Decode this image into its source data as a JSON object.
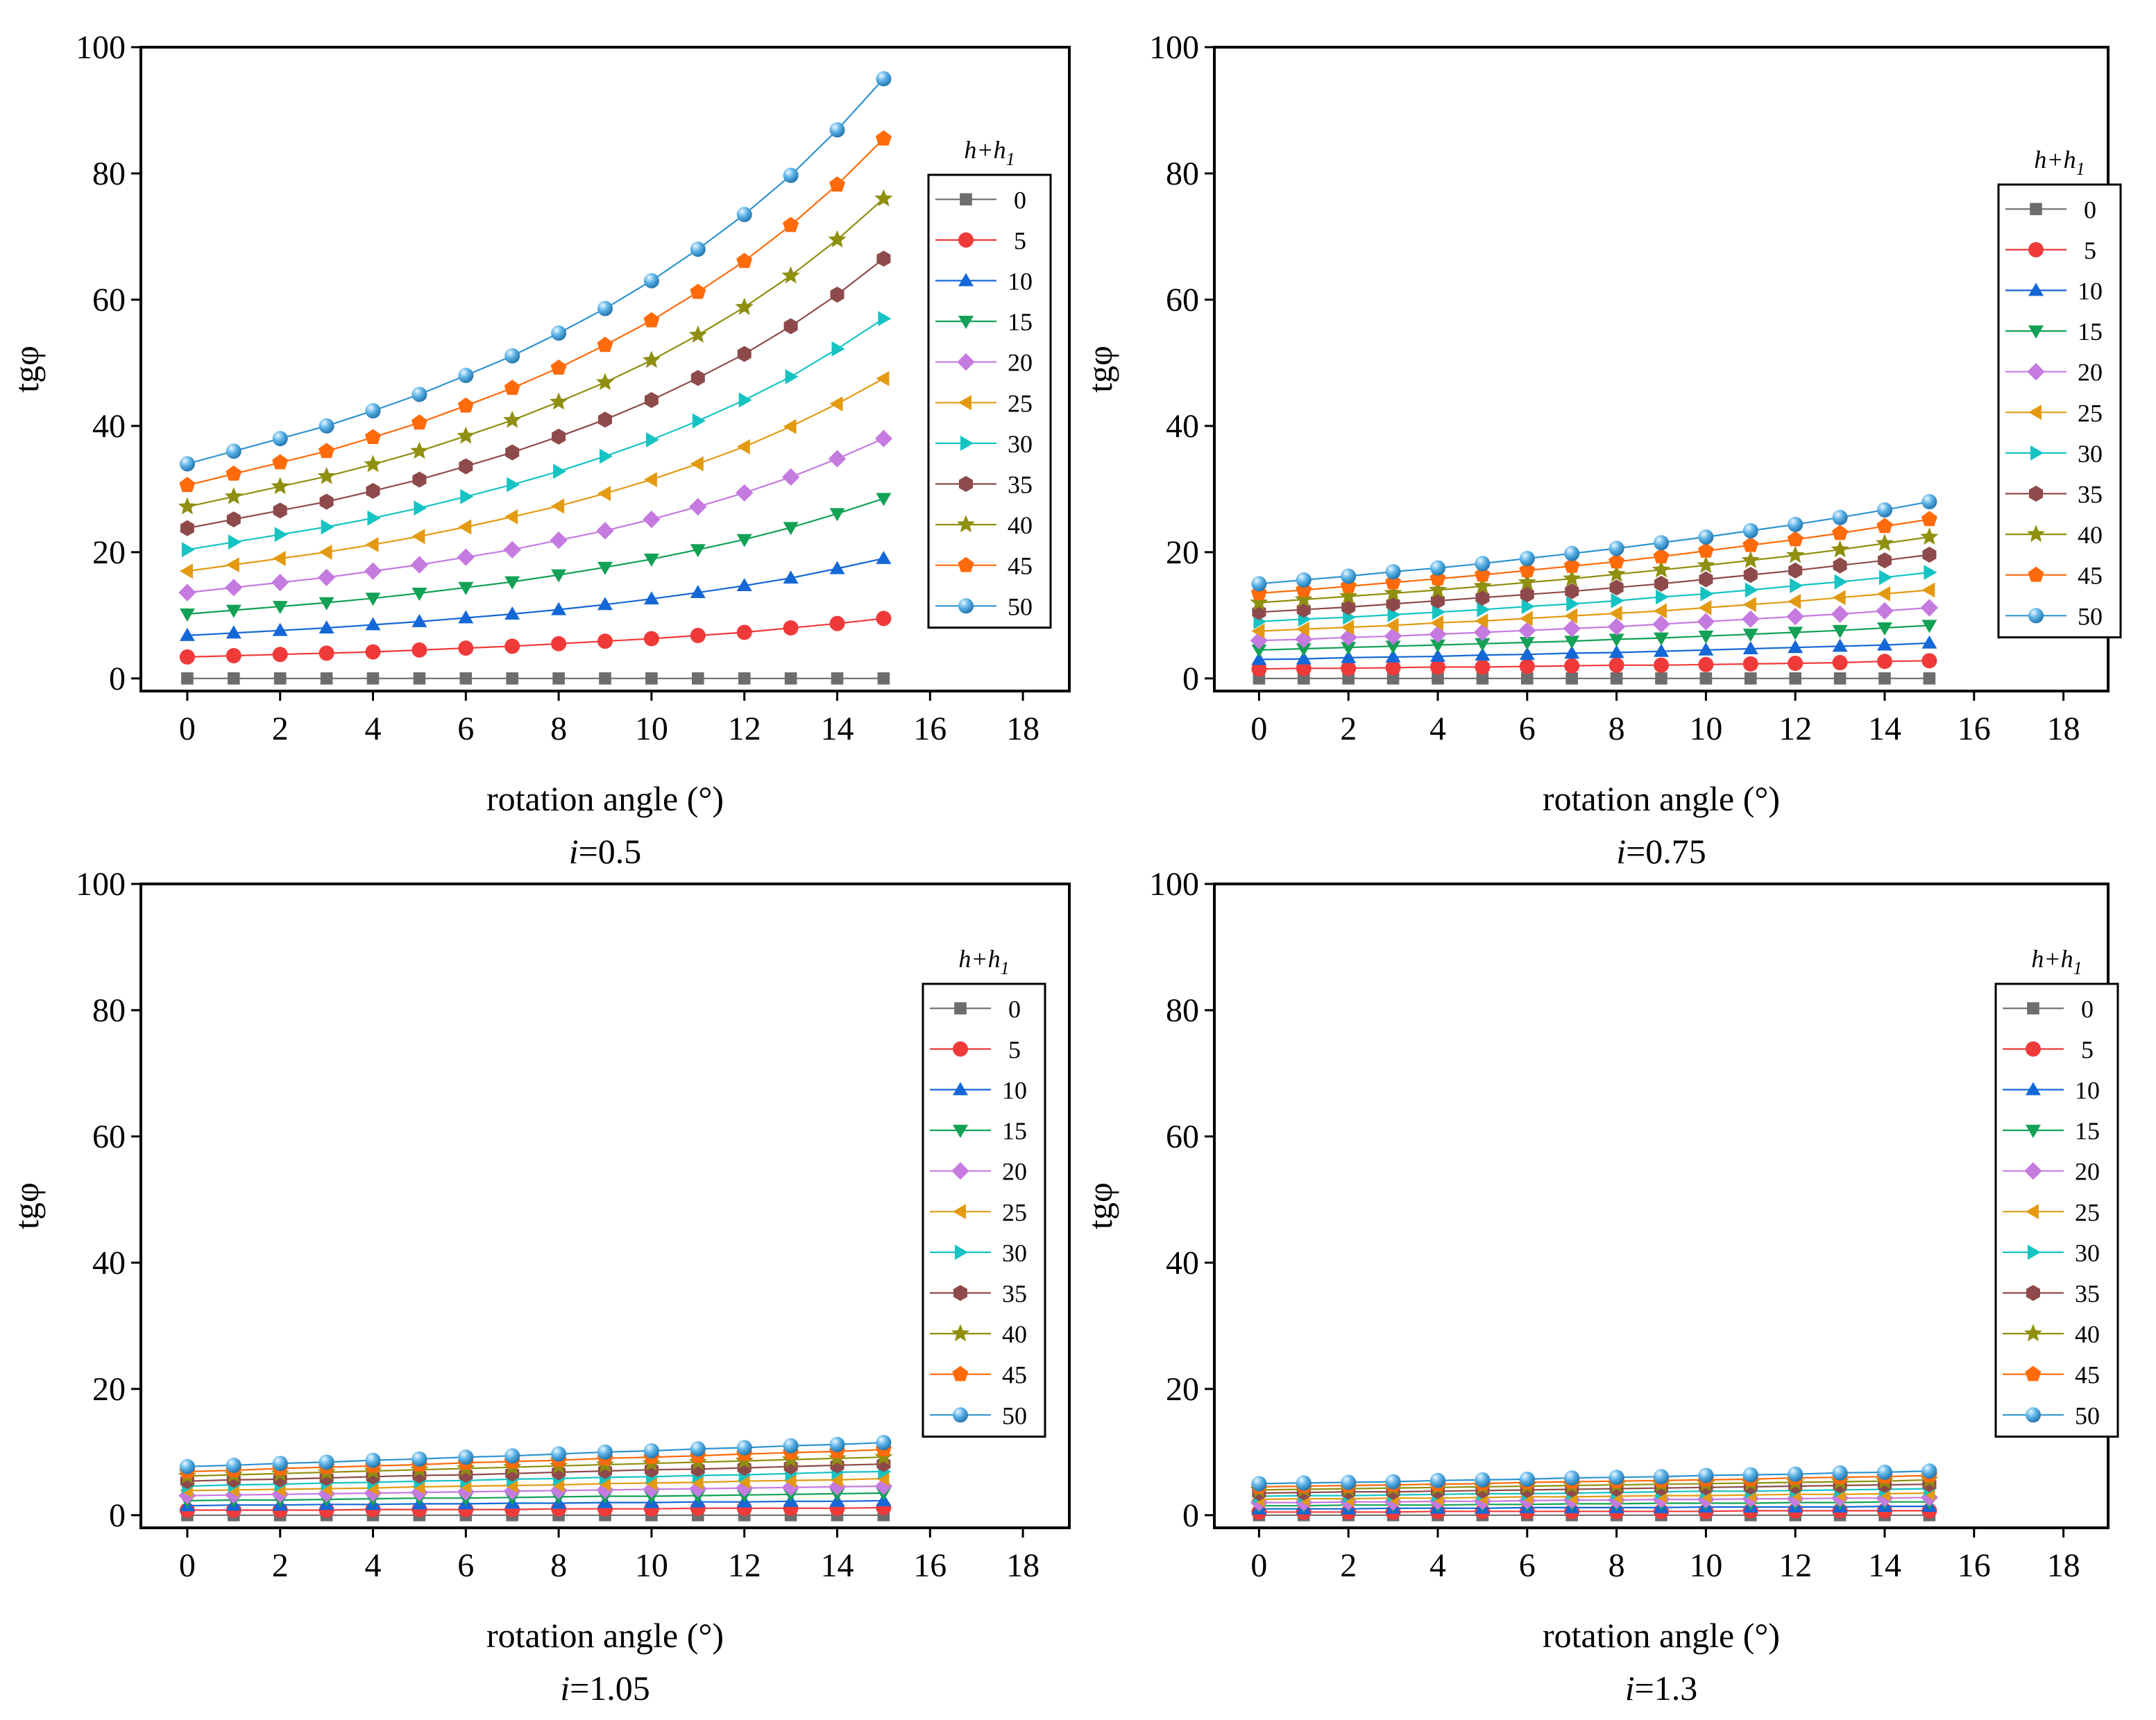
{
  "chart_data": [
    {
      "type": "line",
      "caption_var": "i",
      "caption_value": "=0.5",
      "xlabel": "rotation angle (°)",
      "ylabel": "tgφ",
      "xlim": [
        -1,
        19
      ],
      "ylim": [
        -2,
        100
      ],
      "xticks": [
        0,
        2,
        4,
        6,
        8,
        10,
        12,
        14,
        16,
        18
      ],
      "yticks": [
        0,
        20,
        40,
        60,
        80,
        100
      ],
      "legend_title": {
        "base": "h+h",
        "sub": "1"
      },
      "legend_position": "right",
      "x": [
        0,
        1,
        2,
        3,
        4,
        5,
        6,
        7,
        8,
        9,
        10,
        11,
        12,
        13,
        14,
        15
      ],
      "series": [
        {
          "name": "0",
          "values": [
            0,
            0,
            0,
            0,
            0,
            0,
            0,
            0,
            0,
            0,
            0,
            0,
            0,
            0,
            0,
            0
          ]
        },
        {
          "name": "5",
          "values": [
            3.4,
            3.6,
            3.8,
            4.0,
            4.2,
            4.5,
            4.8,
            5.1,
            5.5,
            5.9,
            6.3,
            6.8,
            7.3,
            8.0,
            8.7,
            9.5
          ]
        },
        {
          "name": "10",
          "values": [
            6.8,
            7.2,
            7.6,
            8.0,
            8.5,
            9.0,
            9.6,
            10.2,
            10.9,
            11.7,
            12.6,
            13.6,
            14.7,
            15.9,
            17.4,
            19.0
          ]
        },
        {
          "name": "15",
          "values": [
            10.2,
            10.8,
            11.4,
            12.0,
            12.7,
            13.5,
            14.4,
            15.3,
            16.4,
            17.6,
            18.9,
            20.4,
            22.0,
            23.9,
            26.1,
            28.5
          ]
        },
        {
          "name": "20",
          "values": [
            13.6,
            14.4,
            15.2,
            16.0,
            17.0,
            18.0,
            19.2,
            20.4,
            21.9,
            23.4,
            25.2,
            27.2,
            29.4,
            31.9,
            34.8,
            38.0
          ]
        },
        {
          "name": "25",
          "values": [
            17.0,
            18.0,
            19.0,
            20.0,
            21.2,
            22.5,
            24.0,
            25.6,
            27.3,
            29.3,
            31.5,
            34.0,
            36.7,
            39.9,
            43.5,
            47.5
          ]
        },
        {
          "name": "30",
          "values": [
            20.4,
            21.6,
            22.8,
            24.0,
            25.4,
            27.0,
            28.8,
            30.7,
            32.8,
            35.2,
            37.8,
            40.8,
            44.1,
            47.8,
            52.2,
            57.0
          ]
        },
        {
          "name": "35",
          "values": [
            23.8,
            25.2,
            26.6,
            28.0,
            29.7,
            31.5,
            33.6,
            35.8,
            38.3,
            41.0,
            44.1,
            47.6,
            51.4,
            55.8,
            60.8,
            66.5
          ]
        },
        {
          "name": "40",
          "values": [
            27.2,
            28.8,
            30.4,
            32.0,
            33.9,
            36.0,
            38.4,
            40.9,
            43.8,
            46.9,
            50.4,
            54.4,
            58.8,
            63.8,
            69.5,
            76.0
          ]
        },
        {
          "name": "45",
          "values": [
            30.6,
            32.4,
            34.2,
            36.0,
            38.2,
            40.5,
            43.2,
            46.0,
            49.2,
            52.8,
            56.7,
            61.2,
            66.1,
            71.8,
            78.2,
            85.5
          ]
        },
        {
          "name": "50",
          "values": [
            34.0,
            36.0,
            38.0,
            40.0,
            42.4,
            45.0,
            48.0,
            51.1,
            54.7,
            58.6,
            63.0,
            68.0,
            73.5,
            79.7,
            86.9,
            95.0
          ]
        }
      ]
    },
    {
      "type": "line",
      "caption_var": "i",
      "caption_value": "=0.75",
      "xlabel": "rotation angle (°)",
      "ylabel": "tgφ",
      "xlim": [
        -1,
        19
      ],
      "ylim": [
        -2,
        100
      ],
      "xticks": [
        0,
        2,
        4,
        6,
        8,
        10,
        12,
        14,
        16,
        18
      ],
      "yticks": [
        0,
        20,
        40,
        60,
        80,
        100
      ],
      "legend_title": {
        "base": "h+h",
        "sub": "1"
      },
      "legend_position": "right",
      "x": [
        0,
        1,
        2,
        3,
        4,
        5,
        6,
        7,
        8,
        9,
        10,
        11,
        12,
        13,
        14,
        15
      ],
      "series": [
        {
          "name": "0",
          "values": [
            0,
            0,
            0,
            0,
            0,
            0,
            0,
            0,
            0,
            0,
            0,
            0,
            0,
            0,
            0,
            0
          ]
        },
        {
          "name": "5",
          "values": [
            1.5,
            1.6,
            1.6,
            1.7,
            1.8,
            1.8,
            1.9,
            2.0,
            2.1,
            2.1,
            2.2,
            2.3,
            2.4,
            2.5,
            2.7,
            2.8
          ]
        },
        {
          "name": "10",
          "values": [
            3.0,
            3.1,
            3.3,
            3.4,
            3.5,
            3.7,
            3.8,
            4.0,
            4.1,
            4.3,
            4.5,
            4.7,
            4.9,
            5.1,
            5.3,
            5.6
          ]
        },
        {
          "name": "15",
          "values": [
            4.5,
            4.7,
            4.9,
            5.1,
            5.3,
            5.5,
            5.7,
            5.9,
            6.2,
            6.4,
            6.7,
            7.0,
            7.3,
            7.6,
            8.0,
            8.4
          ]
        },
        {
          "name": "20",
          "values": [
            6.0,
            6.2,
            6.5,
            6.7,
            7.0,
            7.3,
            7.6,
            7.9,
            8.2,
            8.6,
            9.0,
            9.4,
            9.8,
            10.2,
            10.7,
            11.2
          ]
        },
        {
          "name": "25",
          "values": [
            7.5,
            7.8,
            8.1,
            8.4,
            8.8,
            9.1,
            9.5,
            9.9,
            10.3,
            10.7,
            11.2,
            11.7,
            12.2,
            12.8,
            13.4,
            14.0
          ]
        },
        {
          "name": "30",
          "values": [
            9.0,
            9.4,
            9.7,
            10.1,
            10.5,
            10.9,
            11.4,
            11.8,
            12.3,
            12.9,
            13.4,
            14.0,
            14.7,
            15.3,
            16.0,
            16.8
          ]
        },
        {
          "name": "35",
          "values": [
            10.5,
            10.9,
            11.3,
            11.8,
            12.3,
            12.8,
            13.3,
            13.8,
            14.4,
            15.0,
            15.7,
            16.4,
            17.1,
            17.9,
            18.7,
            19.6
          ]
        },
        {
          "name": "40",
          "values": [
            12.0,
            12.5,
            13.0,
            13.5,
            14.0,
            14.6,
            15.2,
            15.8,
            16.5,
            17.2,
            17.9,
            18.7,
            19.5,
            20.4,
            21.4,
            22.4
          ]
        },
        {
          "name": "45",
          "values": [
            13.5,
            14.0,
            14.6,
            15.2,
            15.8,
            16.4,
            17.1,
            17.8,
            18.5,
            19.3,
            20.2,
            21.1,
            22.0,
            23.0,
            24.1,
            25.2
          ]
        },
        {
          "name": "50",
          "values": [
            15.0,
            15.6,
            16.2,
            16.9,
            17.5,
            18.2,
            19.0,
            19.8,
            20.6,
            21.5,
            22.4,
            23.4,
            24.4,
            25.5,
            26.7,
            28.0
          ]
        }
      ]
    },
    {
      "type": "line",
      "caption_var": "i",
      "caption_value": "=1.05",
      "xlabel": "rotation angle (°)",
      "ylabel": "tgφ",
      "xlim": [
        -1,
        19
      ],
      "ylim": [
        -2,
        100
      ],
      "xticks": [
        0,
        2,
        4,
        6,
        8,
        10,
        12,
        14,
        16,
        18
      ],
      "yticks": [
        0,
        20,
        40,
        60,
        80,
        100
      ],
      "legend_title": {
        "base": "h+h",
        "sub": "1"
      },
      "legend_position": "right",
      "x": [
        0,
        1,
        2,
        3,
        4,
        5,
        6,
        7,
        8,
        9,
        10,
        11,
        12,
        13,
        14,
        15
      ],
      "series": [
        {
          "name": "0",
          "values": [
            0,
            0,
            0,
            0,
            0,
            0,
            0,
            0,
            0,
            0,
            0,
            0,
            0,
            0,
            0,
            0
          ]
        },
        {
          "name": "5",
          "values": [
            0.8,
            0.8,
            0.8,
            0.8,
            0.9,
            0.9,
            0.9,
            0.9,
            1.0,
            1.0,
            1.0,
            1.1,
            1.1,
            1.1,
            1.1,
            1.2
          ]
        },
        {
          "name": "10",
          "values": [
            1.5,
            1.6,
            1.6,
            1.7,
            1.7,
            1.8,
            1.8,
            1.9,
            1.9,
            2.0,
            2.0,
            2.1,
            2.1,
            2.2,
            2.2,
            2.3
          ]
        },
        {
          "name": "15",
          "values": [
            2.3,
            2.4,
            2.4,
            2.5,
            2.6,
            2.7,
            2.7,
            2.8,
            2.9,
            3.0,
            3.0,
            3.1,
            3.2,
            3.3,
            3.4,
            3.5
          ]
        },
        {
          "name": "20",
          "values": [
            3.1,
            3.2,
            3.3,
            3.4,
            3.5,
            3.6,
            3.7,
            3.8,
            3.9,
            4.0,
            4.1,
            4.2,
            4.3,
            4.4,
            4.5,
            4.6
          ]
        },
        {
          "name": "25",
          "values": [
            3.9,
            4.0,
            4.1,
            4.2,
            4.3,
            4.5,
            4.6,
            4.7,
            4.8,
            5.0,
            5.1,
            5.2,
            5.4,
            5.5,
            5.6,
            5.8
          ]
        },
        {
          "name": "30",
          "values": [
            4.6,
            4.8,
            4.9,
            5.1,
            5.2,
            5.4,
            5.5,
            5.7,
            5.8,
            6.0,
            6.1,
            6.3,
            6.4,
            6.6,
            6.8,
            6.9
          ]
        },
        {
          "name": "35",
          "values": [
            5.4,
            5.6,
            5.7,
            5.9,
            6.1,
            6.3,
            6.4,
            6.6,
            6.8,
            7.0,
            7.2,
            7.3,
            7.5,
            7.7,
            7.9,
            8.1
          ]
        },
        {
          "name": "40",
          "values": [
            6.2,
            6.4,
            6.6,
            6.8,
            7.0,
            7.2,
            7.4,
            7.6,
            7.8,
            8.0,
            8.2,
            8.4,
            8.6,
            8.8,
            9.0,
            9.2
          ]
        },
        {
          "name": "45",
          "values": [
            6.9,
            7.1,
            7.4,
            7.6,
            7.8,
            8.0,
            8.3,
            8.5,
            8.7,
            9.0,
            9.2,
            9.4,
            9.7,
            9.9,
            10.1,
            10.4
          ]
        },
        {
          "name": "50",
          "values": [
            7.7,
            7.9,
            8.2,
            8.4,
            8.7,
            8.9,
            9.2,
            9.4,
            9.7,
            10.0,
            10.2,
            10.5,
            10.7,
            11.0,
            11.2,
            11.5
          ]
        }
      ]
    },
    {
      "type": "line",
      "caption_var": "i",
      "caption_value": "=1.3",
      "xlabel": "rotation angle (°)",
      "ylabel": "tgφ",
      "xlim": [
        -1,
        19
      ],
      "ylim": [
        -2,
        100
      ],
      "xticks": [
        0,
        2,
        4,
        6,
        8,
        10,
        12,
        14,
        16,
        18
      ],
      "yticks": [
        0,
        20,
        40,
        60,
        80,
        100
      ],
      "legend_title": {
        "base": "h+h",
        "sub": "1"
      },
      "legend_position": "right",
      "x": [
        0,
        1,
        2,
        3,
        4,
        5,
        6,
        7,
        8,
        9,
        10,
        11,
        12,
        13,
        14,
        15
      ],
      "series": [
        {
          "name": "0",
          "values": [
            0,
            0,
            0,
            0,
            0,
            0,
            0,
            0,
            0,
            0,
            0,
            0,
            0,
            0,
            0,
            0
          ]
        },
        {
          "name": "5",
          "values": [
            0.5,
            0.5,
            0.5,
            0.5,
            0.6,
            0.6,
            0.6,
            0.6,
            0.6,
            0.6,
            0.6,
            0.7,
            0.7,
            0.7,
            0.7,
            0.7
          ]
        },
        {
          "name": "10",
          "values": [
            1.0,
            1.0,
            1.0,
            1.1,
            1.1,
            1.1,
            1.2,
            1.2,
            1.2,
            1.2,
            1.3,
            1.3,
            1.3,
            1.3,
            1.4,
            1.4
          ]
        },
        {
          "name": "15",
          "values": [
            1.5,
            1.5,
            1.6,
            1.6,
            1.6,
            1.7,
            1.7,
            1.8,
            1.8,
            1.9,
            1.9,
            1.9,
            2.0,
            2.0,
            2.1,
            2.1
          ]
        },
        {
          "name": "20",
          "values": [
            2.0,
            2.0,
            2.1,
            2.1,
            2.2,
            2.2,
            2.3,
            2.4,
            2.4,
            2.5,
            2.5,
            2.6,
            2.6,
            2.7,
            2.7,
            2.8
          ]
        },
        {
          "name": "25",
          "values": [
            2.5,
            2.6,
            2.6,
            2.7,
            2.7,
            2.8,
            2.9,
            2.9,
            3.0,
            3.1,
            3.1,
            3.2,
            3.3,
            3.3,
            3.4,
            3.5
          ]
        },
        {
          "name": "30",
          "values": [
            3.0,
            3.1,
            3.1,
            3.2,
            3.3,
            3.4,
            3.4,
            3.5,
            3.6,
            3.7,
            3.8,
            3.8,
            3.9,
            4.0,
            4.1,
            4.2
          ]
        },
        {
          "name": "35",
          "values": [
            3.5,
            3.6,
            3.7,
            3.7,
            3.8,
            3.9,
            4.0,
            4.1,
            4.2,
            4.3,
            4.4,
            4.5,
            4.6,
            4.7,
            4.8,
            4.9
          ]
        },
        {
          "name": "40",
          "values": [
            4.0,
            4.1,
            4.2,
            4.3,
            4.4,
            4.5,
            4.6,
            4.7,
            4.8,
            4.9,
            5.0,
            5.1,
            5.2,
            5.3,
            5.4,
            5.6
          ]
        },
        {
          "name": "45",
          "values": [
            4.5,
            4.6,
            4.7,
            4.8,
            4.9,
            5.0,
            5.2,
            5.3,
            5.4,
            5.5,
            5.6,
            5.7,
            5.9,
            6.0,
            6.1,
            6.3
          ]
        },
        {
          "name": "50",
          "values": [
            5.0,
            5.1,
            5.2,
            5.3,
            5.5,
            5.6,
            5.7,
            5.9,
            6.0,
            6.1,
            6.3,
            6.4,
            6.5,
            6.7,
            6.8,
            7.0
          ]
        }
      ]
    }
  ],
  "series_styles": [
    {
      "color": "#6d6d6d",
      "marker": "square"
    },
    {
      "color": "#f03a3a",
      "marker": "circle"
    },
    {
      "color": "#1467d6",
      "marker": "triangle-up"
    },
    {
      "color": "#12a155",
      "marker": "triangle-down"
    },
    {
      "color": "#c57ae0",
      "marker": "diamond"
    },
    {
      "color": "#e39a12",
      "marker": "triangle-left"
    },
    {
      "color": "#16c3c3",
      "marker": "triangle-right"
    },
    {
      "color": "#8e4a4a",
      "marker": "hexagon"
    },
    {
      "color": "#8f8f10",
      "marker": "star"
    },
    {
      "color": "#ff6a0a",
      "marker": "pentagon"
    },
    {
      "color": "#2d93d0",
      "marker": "sphere"
    }
  ]
}
